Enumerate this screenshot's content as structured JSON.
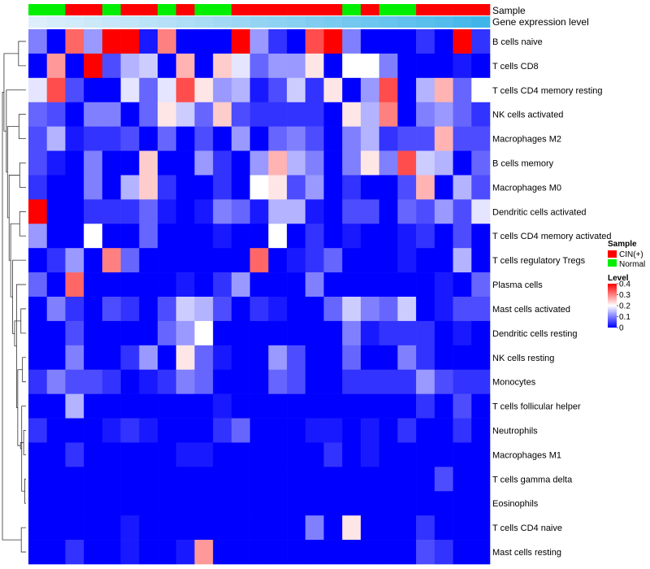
{
  "chart_data": {
    "type": "heatmap",
    "title": "",
    "annotation_labels": {
      "sample": "Sample",
      "expression": "Gene expression level"
    },
    "samples": [
      "Normal",
      "Normal",
      "CIN(+)",
      "CIN(+)",
      "Normal",
      "CIN(+)",
      "CIN(+)",
      "Normal",
      "CIN(+)",
      "Normal",
      "Normal",
      "CIN(+)",
      "CIN(+)",
      "CIN(+)",
      "CIN(+)",
      "CIN(+)",
      "CIN(+)",
      "Normal",
      "CIN(+)",
      "Normal",
      "Normal",
      "CIN(+)",
      "CIN(+)",
      "CIN(+)",
      "CIN(+)"
    ],
    "expression_level": [
      0.02,
      0.05,
      0.08,
      0.12,
      0.15,
      0.18,
      0.22,
      0.26,
      0.3,
      0.34,
      0.38,
      0.42,
      0.46,
      0.5,
      0.54,
      0.58,
      0.62,
      0.66,
      0.7,
      0.74,
      0.78,
      0.82,
      0.86,
      0.92,
      0.98
    ],
    "rows": [
      "B cells naive",
      "T cells CD8",
      "T cells CD4 memory resting",
      "NK cells activated",
      "Macrophages M2",
      "B cells memory",
      "Macrophages M0",
      "Dendritic cells activated",
      "T cells CD4 memory activated",
      "T cells regulatory  Tregs",
      "Plasma cells",
      "Mast cells activated",
      "Dendritic cells resting",
      "NK cells resting",
      "Monocytes",
      "T cells follicular helper",
      "Neutrophils",
      "Macrophages M1",
      "T cells gamma delta",
      "Eosinophils",
      "T cells CD4 naive",
      "Mast cells resting"
    ],
    "values": [
      [
        0.1,
        0.0,
        0.32,
        0.12,
        0.4,
        0.4,
        0.02,
        0.3,
        0.0,
        0.0,
        0.0,
        0.4,
        0.12,
        0.04,
        0.0,
        0.34,
        0.4,
        0.1,
        0.0,
        0.0,
        0.0,
        0.04,
        0.0,
        0.4,
        0.04
      ],
      [
        0.0,
        0.28,
        0.0,
        0.4,
        0.06,
        0.14,
        0.16,
        0.0,
        0.26,
        0.0,
        0.24,
        0.18,
        0.08,
        0.12,
        0.12,
        0.22,
        0.0,
        0.2,
        0.2,
        0.1,
        0.0,
        0.0,
        0.0,
        0.02,
        0.0
      ],
      [
        0.18,
        0.34,
        0.06,
        0.0,
        0.0,
        0.18,
        0.08,
        0.18,
        0.34,
        0.22,
        0.12,
        0.14,
        0.02,
        0.06,
        0.16,
        0.04,
        0.22,
        0.0,
        0.12,
        0.34,
        0.0,
        0.14,
        0.26,
        0.08,
        0.2
      ],
      [
        0.08,
        0.06,
        0.0,
        0.1,
        0.1,
        0.0,
        0.08,
        0.22,
        0.16,
        0.08,
        0.24,
        0.06,
        0.04,
        0.04,
        0.04,
        0.04,
        0.0,
        0.22,
        0.14,
        0.3,
        0.0,
        0.1,
        0.12,
        0.08,
        0.04
      ],
      [
        0.06,
        0.14,
        0.02,
        0.04,
        0.04,
        0.06,
        0.0,
        0.08,
        0.0,
        0.06,
        0.0,
        0.12,
        0.0,
        0.08,
        0.1,
        0.06,
        0.0,
        0.1,
        0.14,
        0.04,
        0.06,
        0.06,
        0.26,
        0.06,
        0.06
      ],
      [
        0.06,
        0.02,
        0.0,
        0.1,
        0.0,
        0.0,
        0.24,
        0.0,
        0.0,
        0.12,
        0.04,
        0.0,
        0.12,
        0.26,
        0.14,
        0.1,
        0.0,
        0.1,
        0.22,
        0.1,
        0.34,
        0.16,
        0.14,
        0.0,
        0.08
      ],
      [
        0.04,
        0.0,
        0.0,
        0.1,
        0.0,
        0.14,
        0.24,
        0.04,
        0.0,
        0.0,
        0.04,
        0.0,
        0.2,
        0.22,
        0.06,
        0.12,
        0.0,
        0.04,
        0.0,
        0.0,
        0.06,
        0.26,
        0.0,
        0.14,
        0.06
      ],
      [
        0.4,
        0.0,
        0.0,
        0.04,
        0.04,
        0.04,
        0.08,
        0.02,
        0.0,
        0.02,
        0.1,
        0.08,
        0.02,
        0.14,
        0.14,
        0.02,
        0.0,
        0.06,
        0.06,
        0.0,
        0.08,
        0.06,
        0.12,
        0.06,
        0.18
      ],
      [
        0.12,
        0.0,
        0.0,
        0.2,
        0.0,
        0.0,
        0.08,
        0.0,
        0.0,
        0.0,
        0.02,
        0.0,
        0.0,
        0.2,
        0.0,
        0.04,
        0.0,
        0.02,
        0.0,
        0.0,
        0.02,
        0.04,
        0.0,
        0.06,
        0.0
      ],
      [
        0.0,
        0.04,
        0.12,
        0.0,
        0.3,
        0.08,
        0.0,
        0.0,
        0.0,
        0.0,
        0.0,
        0.0,
        0.32,
        0.0,
        0.02,
        0.04,
        0.08,
        0.0,
        0.0,
        0.0,
        0.02,
        0.0,
        0.0,
        0.14,
        0.0
      ],
      [
        0.08,
        0.0,
        0.32,
        0.0,
        0.0,
        0.0,
        0.0,
        0.0,
        0.02,
        0.0,
        0.04,
        0.12,
        0.0,
        0.0,
        0.0,
        0.1,
        0.0,
        0.0,
        0.0,
        0.0,
        0.0,
        0.0,
        0.02,
        0.0,
        0.08
      ],
      [
        0.0,
        0.1,
        0.04,
        0.0,
        0.06,
        0.04,
        0.0,
        0.06,
        0.16,
        0.14,
        0.06,
        0.0,
        0.04,
        0.02,
        0.0,
        0.0,
        0.08,
        0.16,
        0.1,
        0.08,
        0.16,
        0.0,
        0.02,
        0.06,
        0.06
      ],
      [
        0.0,
        0.0,
        0.06,
        0.0,
        0.0,
        0.0,
        0.0,
        0.08,
        0.12,
        0.2,
        0.0,
        0.0,
        0.0,
        0.0,
        0.0,
        0.0,
        0.0,
        0.1,
        0.02,
        0.04,
        0.04,
        0.04,
        0.0,
        0.02,
        0.0
      ],
      [
        0.0,
        0.0,
        0.1,
        0.0,
        0.0,
        0.04,
        0.12,
        0.0,
        0.22,
        0.08,
        0.02,
        0.0,
        0.0,
        0.12,
        0.06,
        0.0,
        0.0,
        0.08,
        0.0,
        0.0,
        0.1,
        0.04,
        0.0,
        0.0,
        0.0
      ],
      [
        0.04,
        0.1,
        0.06,
        0.06,
        0.04,
        0.0,
        0.02,
        0.04,
        0.1,
        0.08,
        0.0,
        0.0,
        0.0,
        0.08,
        0.06,
        0.0,
        0.0,
        0.04,
        0.04,
        0.04,
        0.04,
        0.12,
        0.06,
        0.04,
        0.04
      ],
      [
        0.0,
        0.0,
        0.14,
        0.0,
        0.0,
        0.0,
        0.0,
        0.0,
        0.0,
        0.0,
        0.02,
        0.0,
        0.0,
        0.0,
        0.0,
        0.0,
        0.0,
        0.0,
        0.0,
        0.0,
        0.0,
        0.04,
        0.0,
        0.06,
        0.0
      ],
      [
        0.04,
        0.0,
        0.0,
        0.0,
        0.02,
        0.04,
        0.02,
        0.0,
        0.0,
        0.0,
        0.04,
        0.08,
        0.0,
        0.0,
        0.0,
        0.02,
        0.02,
        0.0,
        0.02,
        0.0,
        0.04,
        0.0,
        0.0,
        0.04,
        0.0
      ],
      [
        0.0,
        0.0,
        0.04,
        0.0,
        0.0,
        0.0,
        0.0,
        0.0,
        0.02,
        0.02,
        0.0,
        0.0,
        0.0,
        0.0,
        0.0,
        0.0,
        0.04,
        0.0,
        0.02,
        0.0,
        0.0,
        0.0,
        0.0,
        0.0,
        0.0
      ],
      [
        0.0,
        0.0,
        0.0,
        0.0,
        0.0,
        0.0,
        0.0,
        0.0,
        0.0,
        0.0,
        0.0,
        0.0,
        0.0,
        0.0,
        0.0,
        0.0,
        0.0,
        0.0,
        0.0,
        0.0,
        0.0,
        0.0,
        0.06,
        0.0,
        0.0
      ],
      [
        0.0,
        0.0,
        0.0,
        0.0,
        0.0,
        0.0,
        0.0,
        0.0,
        0.0,
        0.0,
        0.0,
        0.0,
        0.0,
        0.0,
        0.0,
        0.0,
        0.0,
        0.0,
        0.0,
        0.0,
        0.0,
        0.0,
        0.0,
        0.0,
        0.0
      ],
      [
        0.0,
        0.0,
        0.0,
        0.0,
        0.0,
        0.02,
        0.0,
        0.0,
        0.0,
        0.0,
        0.0,
        0.0,
        0.0,
        0.0,
        0.0,
        0.1,
        0.0,
        0.22,
        0.0,
        0.0,
        0.0,
        0.04,
        0.0,
        0.0,
        0.0
      ],
      [
        0.0,
        0.0,
        0.04,
        0.0,
        0.0,
        0.02,
        0.0,
        0.0,
        0.02,
        0.28,
        0.0,
        0.0,
        0.0,
        0.0,
        0.0,
        0.0,
        0.0,
        0.0,
        0.0,
        0.0,
        0.0,
        0.06,
        0.04,
        0.0,
        0.0
      ]
    ],
    "value_range": [
      0,
      0.4
    ],
    "legend": {
      "sample_title": "Sample",
      "sample_entries": [
        {
          "label": "CIN(+)",
          "color": "#ff0000"
        },
        {
          "label": "Normal",
          "color": "#00ee00"
        }
      ],
      "level_title": "Level",
      "level_ticks": [
        "0.4",
        "0.3",
        "0.2",
        "0.1",
        "0"
      ],
      "level_tick_values": [
        0.4,
        0.3,
        0.2,
        0.1,
        0
      ],
      "low_color": "#0000ff",
      "mid_color": "#ffffff",
      "high_color": "#ff0000"
    },
    "expression_colors": {
      "low": "#dff0fb",
      "high": "#3cb4ea"
    },
    "row_dendrogram": {
      "merges": [
        [
          18,
          19,
          0.3
        ],
        [
          16,
          17,
          0.6
        ],
        [
          15,
          -1,
          1.1
        ],
        [
          -3,
          -2,
          1.4
        ],
        [
          13,
          14,
          0.9
        ],
        [
          -4,
          -5,
          2.1
        ],
        [
          11,
          12,
          1.3
        ],
        [
          10,
          -6,
          2.4
        ],
        [
          -7,
          -8,
          2.9
        ],
        [
          9,
          -9,
          3.4
        ],
        [
          7,
          8,
          1.6
        ],
        [
          -10,
          -11,
          3.9
        ],
        [
          5,
          6,
          1.6
        ],
        [
          -12,
          -13,
          4.3
        ],
        [
          3,
          4,
          1.8
        ],
        [
          -14,
          -15,
          4.7
        ],
        [
          2,
          -16,
          5.0
        ],
        [
          0,
          1,
          1.9
        ],
        [
          -17,
          -18,
          5.6
        ],
        [
          20,
          21,
          1.2
        ],
        [
          -19,
          -20,
          6.0
        ]
      ]
    }
  }
}
